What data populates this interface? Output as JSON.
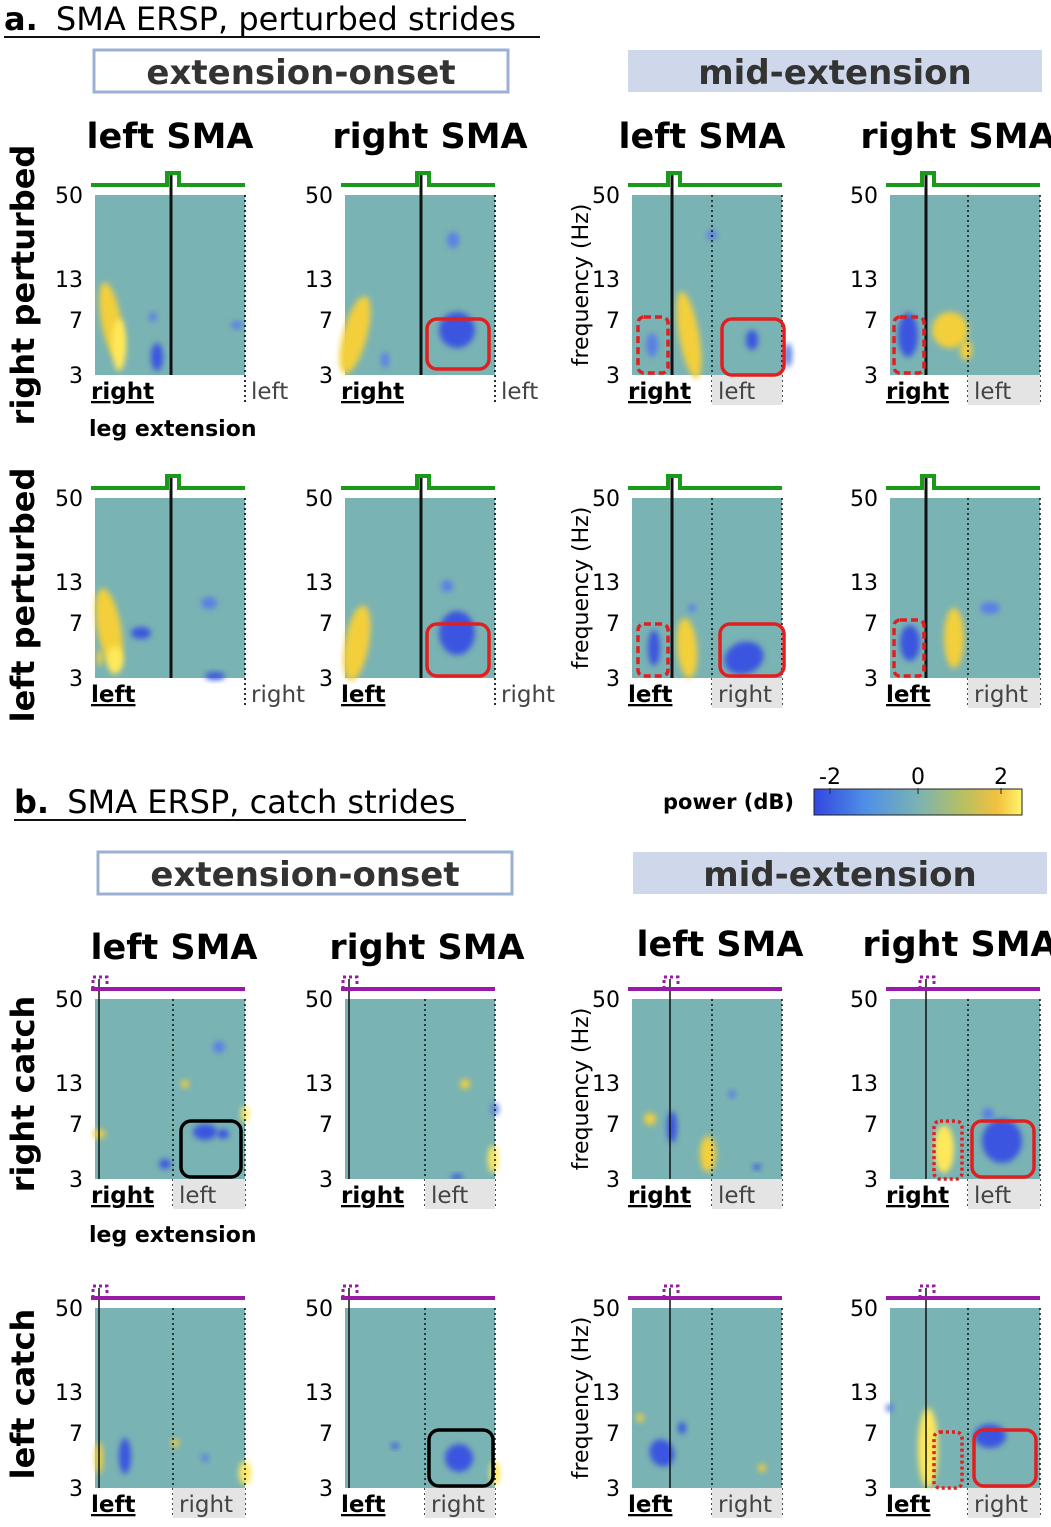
{
  "section_a": {
    "letter": "a.",
    "title": "SMA ERSP, perturbed strides"
  },
  "section_b": {
    "letter": "b.",
    "title": "SMA ERSP, catch strides"
  },
  "event_headers": [
    "extension-onset",
    "mid-extension"
  ],
  "hemisphere_headers": [
    "left SMA",
    "right SMA",
    "left SMA",
    "right SMA"
  ],
  "row_labels": [
    "right perturbed",
    "left perturbed",
    "right catch",
    "left catch"
  ],
  "leg_extension_label": "leg extension",
  "frequency_label": "frequency (Hz)",
  "y_ticks": [
    "50",
    "13",
    "7",
    "3"
  ],
  "phase_labels": {
    "right": {
      "first": "right",
      "second": "left"
    },
    "left": {
      "first": "left",
      "second": "right"
    }
  },
  "colorbar": {
    "label": "power (dB)",
    "ticks": [
      "-2",
      "0",
      "2"
    ],
    "min": -2,
    "max": 2
  },
  "colors": {
    "perturbed_trace": "#1a9a1a",
    "catch_trace": "#9a1aa8",
    "highlight_box": "#e02020",
    "catch_box": "#000000",
    "onset_box": "#9bb0d2",
    "mid_box": "#cfd8ea",
    "phase_box": "#e4e4e4",
    "zero_power": "#7ab3b3"
  },
  "chart_data": {
    "type": "heatmap",
    "y_axis": {
      "label": "frequency (Hz)",
      "scale": "log",
      "ticks": [
        50,
        13,
        7,
        3
      ],
      "range": [
        3,
        50
      ]
    },
    "color_scale": {
      "label": "power (dB)",
      "range": [
        -2,
        2
      ],
      "ticks": [
        -2,
        0,
        2
      ]
    },
    "columns": [
      "extension-onset / left SMA",
      "extension-onset / right SMA",
      "mid-extension / left SMA",
      "mid-extension / right SMA"
    ],
    "rows": [
      "right perturbed",
      "left perturbed",
      "right catch",
      "left catch"
    ]
  }
}
